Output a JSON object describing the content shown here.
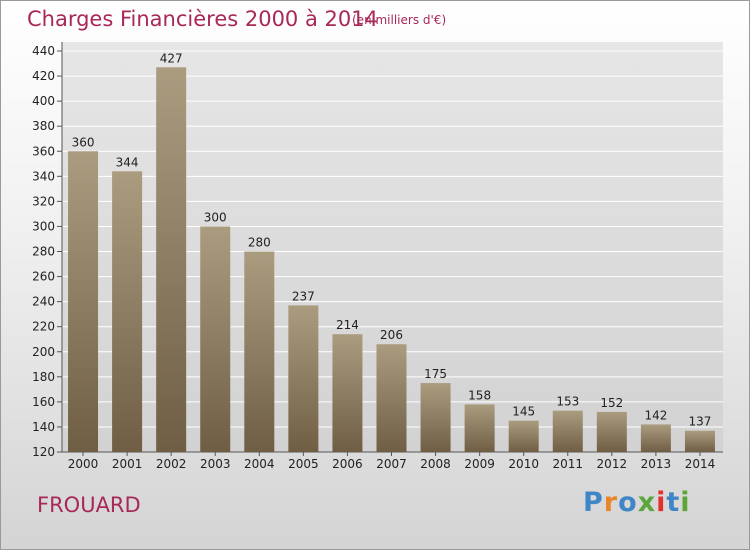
{
  "header": {
    "title": "Charges Financières 2000 à 2014",
    "subtitle": "(en milliers d'€)"
  },
  "footer": {
    "city": "FROUARD",
    "logo_text": "Proxiti"
  },
  "colors": {
    "title": "#a8285a",
    "bar_top": "#ab9c80",
    "bar_bottom": "#6f5e44",
    "logo_letters": [
      "#3f86c7",
      "#e8862c",
      "#3f86c7",
      "#5aa63a",
      "#e2312d",
      "#3f86c7",
      "#5aa63a"
    ]
  },
  "chart_data": {
    "type": "bar",
    "title": "Charges Financières 2000 à 2014",
    "subtitle": "(en milliers d'€)",
    "categories": [
      "2000",
      "2001",
      "2002",
      "2003",
      "2004",
      "2005",
      "2006",
      "2007",
      "2008",
      "2009",
      "2010",
      "2011",
      "2012",
      "2013",
      "2014"
    ],
    "values": [
      360,
      344,
      427,
      300,
      280,
      237,
      214,
      206,
      175,
      158,
      145,
      153,
      152,
      142,
      137
    ],
    "data_labels": [
      "360",
      "344",
      "427",
      "300",
      "280",
      "237",
      "214",
      "206",
      "175",
      "158",
      "145",
      "153",
      "152",
      "142",
      "137"
    ],
    "yticks": [
      120,
      140,
      160,
      180,
      200,
      220,
      240,
      260,
      280,
      300,
      320,
      340,
      360,
      380,
      400,
      420,
      440
    ],
    "ytick_labels": [
      "120",
      "140",
      "160",
      "180",
      "200",
      "220",
      "240",
      "260",
      "280",
      "300",
      "320",
      "340",
      "360",
      "380",
      "400",
      "420",
      "440"
    ],
    "ylim": [
      120,
      440
    ],
    "xlabel": "",
    "ylabel": "",
    "grid": true
  }
}
